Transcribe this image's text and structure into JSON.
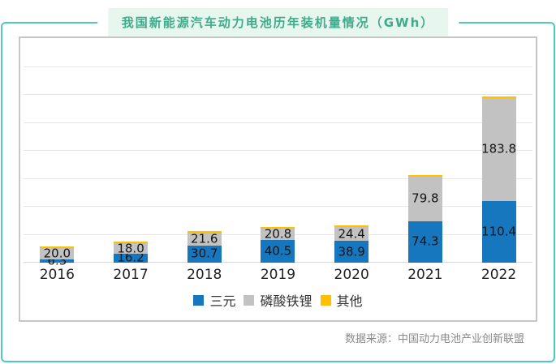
{
  "title": "我国新能源汽车动力电池历年装机量情况（GWh）",
  "source": "数据来源：中国动力电池产业创新联盟",
  "colors": {
    "card_border": "#52c7bd",
    "title_badge_bg": "#e7f6ee",
    "title_text": "#3fab8c",
    "panel_border": "#c6c6c6",
    "gridline": "#e6e6e6",
    "series_ternary": "#1677be",
    "series_lfp": "#c2c2c2",
    "series_other": "#ffc000"
  },
  "chart_data": {
    "type": "bar",
    "stacked": true,
    "title": "我国新能源汽车动力电池历年装机量情况（GWh）",
    "categories": [
      "2016",
      "2017",
      "2018",
      "2019",
      "2020",
      "2021",
      "2022"
    ],
    "series": [
      {
        "name": "三元",
        "color": "#1677be",
        "values": [
          6.3,
          16.2,
          30.7,
          40.5,
          38.9,
          74.3,
          110.4
        ],
        "labels": [
          "6.3",
          "16.2",
          "30.7",
          "40.5",
          "38.9",
          "74.3",
          "110.4"
        ],
        "labels_shown": true
      },
      {
        "name": "磷酸铁锂",
        "color": "#c2c2c2",
        "values": [
          20.0,
          18.0,
          21.6,
          20.8,
          24.4,
          79.8,
          183.8
        ],
        "labels": [
          "20.0",
          "18.0",
          "21.6",
          "20.8",
          "24.4",
          "79.8",
          "183.8"
        ],
        "labels_shown": true
      },
      {
        "name": "其他",
        "color": "#ffc000",
        "values": [
          1.9,
          2.2,
          4.6,
          0.9,
          0.3,
          0.4,
          0.4
        ],
        "values_estimated_from_pixels": true,
        "labels_shown": false
      }
    ],
    "ylim": [
      0,
      350
    ],
    "gridline_interval": 50,
    "y_tick_labels_shown": false,
    "grid": true,
    "legend_position": "bottom",
    "data_labels_position": "center"
  }
}
